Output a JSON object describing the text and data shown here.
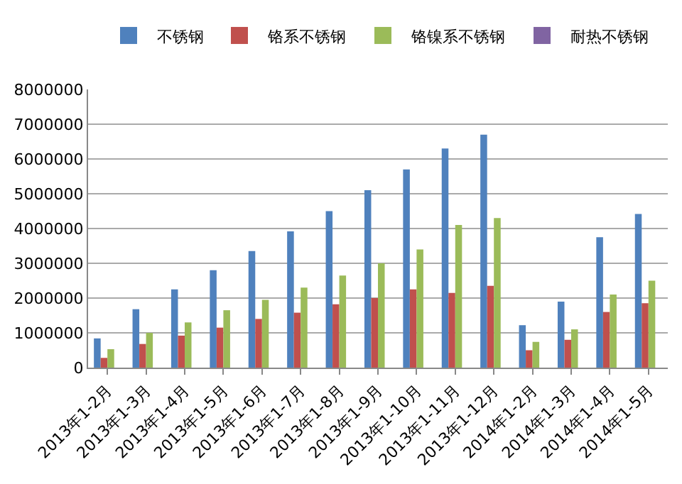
{
  "chart_data": {
    "type": "bar",
    "categories": [
      "2013年1-2月",
      "2013年1-3月",
      "2013年1-4月",
      "2013年1-5月",
      "2013年1-6月",
      "2013年1-7月",
      "2013年1-8月",
      "2013年1-9月",
      "2013年1-10月",
      "2013年1-11月",
      "2013年1-12月",
      "2014年1-2月",
      "2014年1-3月",
      "2014年1-4月",
      "2014年1-5月"
    ],
    "series": [
      {
        "name": "不锈钢",
        "color": "#4f81bd",
        "values": [
          840000,
          1680000,
          2250000,
          2800000,
          3350000,
          3920000,
          4500000,
          5100000,
          5700000,
          6300000,
          6700000,
          1220000,
          1900000,
          3750000,
          4420000
        ]
      },
      {
        "name": "铬系不锈钢",
        "color": "#c0504d",
        "values": [
          280000,
          680000,
          920000,
          1150000,
          1400000,
          1580000,
          1820000,
          2000000,
          2250000,
          2150000,
          2350000,
          500000,
          800000,
          1600000,
          1850000
        ]
      },
      {
        "name": "铬镍系不锈钢",
        "color": "#9bbb59",
        "values": [
          530000,
          1000000,
          1300000,
          1650000,
          1950000,
          2300000,
          2650000,
          3000000,
          3400000,
          4100000,
          4300000,
          740000,
          1100000,
          2100000,
          2500000
        ]
      },
      {
        "name": "耐热不锈钢",
        "color": "#8064a2",
        "values": [
          null,
          null,
          null,
          null,
          null,
          null,
          null,
          null,
          null,
          null,
          null,
          null,
          null,
          null,
          null
        ]
      }
    ],
    "ylim": [
      0,
      8000000
    ],
    "yticks": [
      0,
      1000000,
      2000000,
      3000000,
      4000000,
      5000000,
      6000000,
      7000000,
      8000000
    ],
    "grid": "y",
    "legend": "top"
  }
}
